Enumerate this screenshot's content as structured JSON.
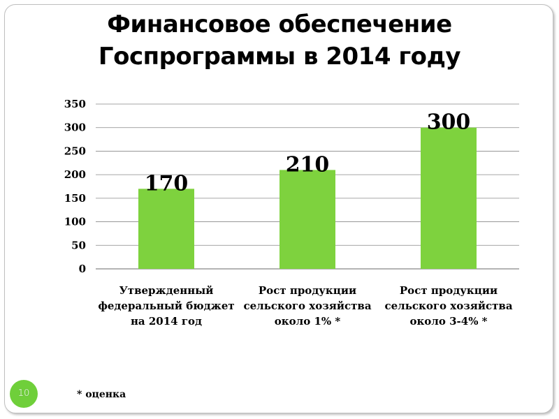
{
  "slide": {
    "title_line1": "Финансовое обеспечение",
    "title_line2": "Госпрограммы в 2014 году",
    "footnote": "* оценка",
    "page_number": "10"
  },
  "colors": {
    "bar": "#7ed23e",
    "grid": "#888888",
    "page_badge": "#6fcf3a"
  },
  "chart_data": {
    "type": "bar",
    "categories": [
      [
        "Утвержденный",
        "федеральный бюджет",
        "на 2014 год"
      ],
      [
        "Рост продукции",
        "сельского хозяйства",
        "около 1% *"
      ],
      [
        "Рост продукции",
        "сельского хозяйства",
        "около 3-4% *"
      ]
    ],
    "values": [
      170,
      210,
      300
    ],
    "data_labels": [
      "170",
      "210",
      "300"
    ],
    "ylim": [
      0,
      350
    ],
    "yticks": [
      0,
      50,
      100,
      150,
      200,
      250,
      300,
      350
    ],
    "grid": true,
    "legend": "none"
  }
}
